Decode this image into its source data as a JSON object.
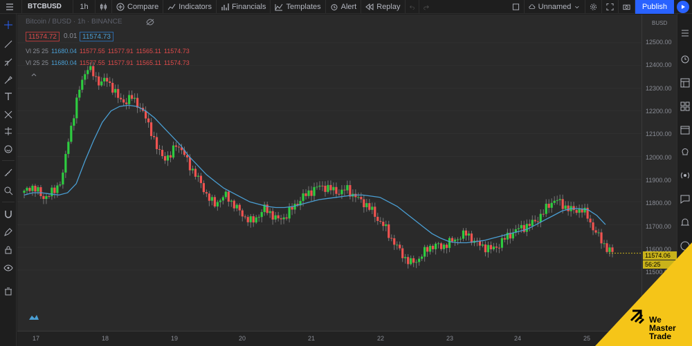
{
  "toolbar": {
    "symbol": "BTCBUSD",
    "interval": "1h",
    "compare": "Compare",
    "indicators": "Indicators",
    "financials": "Financials",
    "templates": "Templates",
    "alert": "Alert",
    "replay": "Replay",
    "layout_name": "Unnamed",
    "publish": "Publish"
  },
  "legend": {
    "title": "Bitcoin / BUSD · 1h · BINANCE",
    "sell_price": "11574.72",
    "spread": "0.01",
    "buy_price": "11574.73",
    "rows": [
      {
        "label": "Vl 25 25",
        "vol": "11680.04",
        "o": "11577.55",
        "h": "11577.91",
        "l": "11565.11",
        "c": "11574.73"
      },
      {
        "label": "Vl 25 25",
        "vol": "11680.04",
        "o": "11577.55",
        "h": "11577.91",
        "l": "11565.11",
        "c": "11574.73"
      }
    ]
  },
  "price_axis": {
    "currency": "BUSD",
    "ticks": [
      "12500.00",
      "12400.00",
      "12300.00",
      "12200.00",
      "12100.00",
      "12000.00",
      "11900.00",
      "11800.00",
      "11700.00",
      "11600.00",
      "11500.00"
    ],
    "last_price": "11574.06",
    "countdown": "56:25"
  },
  "time_axis": {
    "ticks": [
      "17",
      "18",
      "19",
      "20",
      "21",
      "22",
      "23",
      "24",
      "25"
    ]
  },
  "watermark": {
    "line1": "We",
    "line2": "Master",
    "line3": "Trade"
  },
  "colors": {
    "up": "#26a69a",
    "up_bright": "#2ecc40",
    "down": "#ef5350",
    "ma": "#4a9fd4",
    "accent": "#2962ff",
    "badge": "#f5c518"
  },
  "chart_data": {
    "type": "candlestick",
    "symbol": "BTCBUSD",
    "interval": "1h",
    "x_labels": [
      "17",
      "18",
      "19",
      "20",
      "21",
      "22",
      "23",
      "24",
      "25"
    ],
    "ylim": [
      11500,
      12600
    ],
    "close_path": [
      11840,
      11870,
      11850,
      11820,
      11830,
      11860,
      11900,
      12080,
      12200,
      12330,
      12390,
      12360,
      12320,
      12340,
      12300,
      12250,
      12240,
      12260,
      12230,
      12180,
      12120,
      12030,
      12000,
      11990,
      12060,
      12020,
      11970,
      11920,
      11880,
      11820,
      11790,
      11810,
      11830,
      11790,
      11760,
      11730,
      11710,
      11740,
      11770,
      11750,
      11720,
      11730,
      11760,
      11790,
      11820,
      11840,
      11860,
      11870,
      11860,
      11850,
      11840,
      11860,
      11830,
      11810,
      11790,
      11760,
      11720,
      11690,
      11640,
      11600,
      11560,
      11530,
      11540,
      11570,
      11600,
      11610,
      11600,
      11620,
      11630,
      11650,
      11660,
      11630,
      11610,
      11600,
      11590,
      11610,
      11640,
      11660,
      11680,
      11690,
      11700,
      11720,
      11750,
      11790,
      11810,
      11790,
      11770,
      11760,
      11770,
      11740,
      11680,
      11640,
      11600,
      11574
    ],
    "ma_path": [
      11830,
      11840,
      11840,
      11835,
      11830,
      11840,
      11880,
      11980,
      12070,
      12150,
      12200,
      12220,
      12225,
      12220,
      12200,
      12170,
      12130,
      12090,
      12050,
      12000,
      11960,
      11920,
      11890,
      11860,
      11840,
      11820,
      11800,
      11790,
      11780,
      11775,
      11775,
      11780,
      11790,
      11800,
      11810,
      11815,
      11820,
      11825,
      11830,
      11830,
      11825,
      11820,
      11800,
      11780,
      11750,
      11720,
      11690,
      11660,
      11640,
      11625,
      11620,
      11620,
      11625,
      11630,
      11640,
      11650,
      11660,
      11670,
      11680,
      11700,
      11720,
      11740,
      11760,
      11770,
      11770,
      11765,
      11740,
      11700
    ],
    "last_price": 11574.06
  }
}
